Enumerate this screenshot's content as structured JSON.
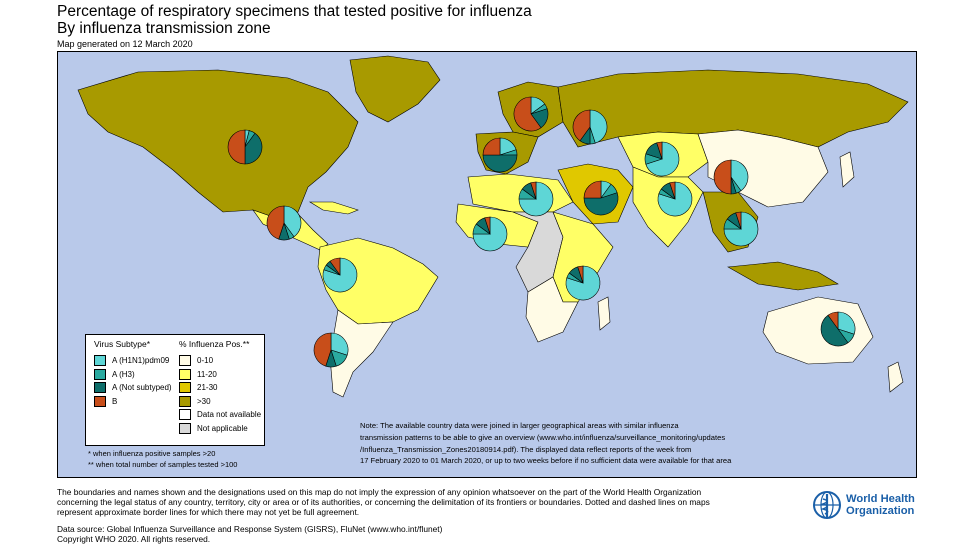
{
  "header": {
    "title": "Percentage of respiratory specimens that tested positive for influenza",
    "subtitle": "By influenza transmission zone",
    "generated": "Map generated on 12 March 2020"
  },
  "colors": {
    "ocean": "#b9c9ea",
    "pct_0_10": "#fffbe6",
    "pct_11_20": "#ffff66",
    "pct_21_30": "#e0c800",
    "pct_gt_30": "#a89a00",
    "not_available": "#ffffff",
    "not_applicable": "#d9d9d9",
    "h1n1": "#5ed6d6",
    "h3": "#2aaaa0",
    "not_subtyped": "#0e6e6a",
    "b": "#c84e1a"
  },
  "legend": {
    "subtype_header": "Virus Subtype*",
    "subtypes": [
      {
        "label": "A (H1N1)pdm09",
        "color": "#5ed6d6"
      },
      {
        "label": "A (H3)",
        "color": "#2aaaa0"
      },
      {
        "label": "A (Not subtyped)",
        "color": "#0e6e6a"
      },
      {
        "label": "B",
        "color": "#c84e1a"
      }
    ],
    "pos_header": "% Influenza Pos.**",
    "categories": [
      {
        "label": "0-10",
        "color": "#fffbe6"
      },
      {
        "label": "11-20",
        "color": "#ffff66"
      },
      {
        "label": "21-30",
        "color": "#e0c800"
      },
      {
        "label": ">30",
        "color": "#a89a00"
      },
      {
        "label": "Data not available",
        "color": "#ffffff"
      },
      {
        "label": "Not applicable",
        "color": "#d9d9d9"
      }
    ]
  },
  "footnotes": {
    "a": "* when influenza positive samples >20",
    "b": "** when total number of samples tested >100"
  },
  "note": {
    "line1": "Note: The available country data were joined in larger geographical areas with similar influenza",
    "line2": "transmission patterns to be able to give an overview (www.who.int/influenza/surveillance_monitoring/updates",
    "line3": "/Influenza_Transmission_Zones20180914.pdf). The displayed data reflect reports of the week from",
    "line4": "17 February 2020 to 01 March 2020, or up to two weeks before if no sufficient data were available for that area"
  },
  "disclaimer": {
    "line1": "The boundaries and names shown and the designations used on this map do not imply the expression of any opinion whatsoever on the part of the World Health Organization",
    "line2": "concerning the legal status of any country, territory, city or area or of its authorities, or concerning the delimitation of its frontiers or boundaries. Dotted and dashed lines on maps",
    "line3": "represent approximate border lines for which there may not yet be full agreement."
  },
  "source": {
    "line1": "Data source: Global Influenza Surveillance and Response System (GISRS), FluNet (www.who.int/flunet)",
    "line2": "Copyright WHO 2020. All rights reserved."
  },
  "logo": {
    "line1": "World Health",
    "line2": "Organization"
  },
  "zones": [
    {
      "name": "North America",
      "category": ">30",
      "pie": [
        4,
        6,
        40,
        50
      ]
    },
    {
      "name": "Central America and Caribbean",
      "category": "11-20",
      "pie": [
        40,
        5,
        10,
        45
      ]
    },
    {
      "name": "Tropical South America",
      "category": "11-20",
      "pie": [
        80,
        5,
        5,
        10
      ]
    },
    {
      "name": "Temperate South America",
      "category": "0-10",
      "pie": [
        30,
        15,
        10,
        45
      ]
    },
    {
      "name": "Northern Europe",
      "category": ">30",
      "pie": [
        15,
        5,
        20,
        60
      ]
    },
    {
      "name": "Eastern Europe",
      "category": ">30",
      "pie": [
        45,
        5,
        10,
        40
      ]
    },
    {
      "name": "South West Europe",
      "category": ">30",
      "pie": [
        20,
        5,
        50,
        25
      ]
    },
    {
      "name": "Northern Africa",
      "category": "11-20",
      "pie": [
        75,
        10,
        10,
        5
      ]
    },
    {
      "name": "Western Asia",
      "category": "21-30",
      "pie": [
        10,
        10,
        55,
        25
      ]
    },
    {
      "name": "Central Asia",
      "category": "11-20",
      "pie": [
        70,
        10,
        15,
        5
      ]
    },
    {
      "name": "Southern Asia",
      "category": "11-20",
      "pie": [
        80,
        5,
        10,
        5
      ]
    },
    {
      "name": "Eastern Asia",
      "category": "0-10",
      "pie": [
        40,
        5,
        5,
        50
      ]
    },
    {
      "name": "South East Asia",
      "category": "11-20",
      "pie": [
        75,
        10,
        10,
        5
      ]
    },
    {
      "name": "Western Africa",
      "category": "11-20",
      "pie": [
        75,
        10,
        10,
        5
      ]
    },
    {
      "name": "Eastern Africa",
      "category": "11-20",
      "pie": [
        80,
        5,
        10,
        5
      ]
    },
    {
      "name": "Oceania Melanesia Polynesia",
      "category": "0-10",
      "pie": [
        30,
        10,
        50,
        10
      ]
    }
  ]
}
